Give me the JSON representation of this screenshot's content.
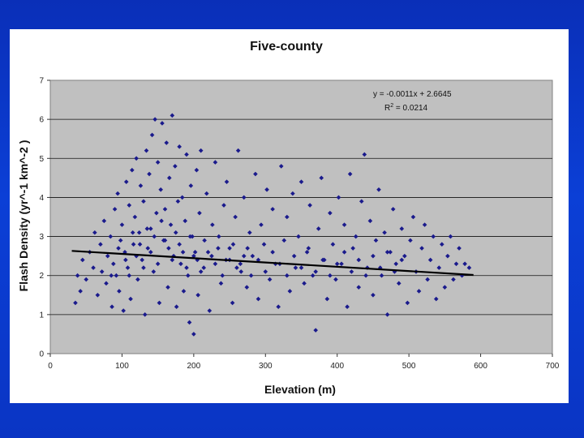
{
  "chart_data": {
    "type": "scatter",
    "title": "Five-county",
    "xlabel": "Elevation (m)",
    "ylabel": "Flash Density (yr^-1 km^-2 )",
    "xlim": [
      0,
      700
    ],
    "ylim": [
      0,
      7
    ],
    "x_ticks": [
      "0",
      "100",
      "200",
      "300",
      "400",
      "500",
      "600",
      "700"
    ],
    "y_ticks": [
      "0",
      "1",
      "2",
      "3",
      "4",
      "5",
      "6",
      "7"
    ],
    "grid": "horizontal",
    "legend": "none",
    "trendline": {
      "equation": "y = -0.0011x + 2.6645",
      "r2_prefix": "R",
      "r2_sup": "2",
      "r2_value": " = 0.0214",
      "slope": -0.0011,
      "intercept": 2.6645,
      "x_range": [
        30,
        590
      ]
    },
    "series": [
      {
        "marker": "diamond",
        "color": "#1a1a8c",
        "points": [
          [
            35,
            1.3
          ],
          [
            38,
            2.0
          ],
          [
            42,
            1.6
          ],
          [
            45,
            2.4
          ],
          [
            50,
            1.9
          ],
          [
            55,
            2.6
          ],
          [
            60,
            2.2
          ],
          [
            62,
            3.1
          ],
          [
            66,
            1.5
          ],
          [
            70,
            2.8
          ],
          [
            72,
            2.1
          ],
          [
            75,
            3.4
          ],
          [
            78,
            1.8
          ],
          [
            80,
            2.5
          ],
          [
            84,
            3.0
          ],
          [
            86,
            1.2
          ],
          [
            88,
            2.3
          ],
          [
            90,
            3.7
          ],
          [
            92,
            2.0
          ],
          [
            94,
            4.1
          ],
          [
            96,
            1.6
          ],
          [
            98,
            2.9
          ],
          [
            100,
            3.3
          ],
          [
            102,
            1.1
          ],
          [
            104,
            2.6
          ],
          [
            106,
            4.4
          ],
          [
            108,
            2.2
          ],
          [
            110,
            3.8
          ],
          [
            112,
            1.4
          ],
          [
            114,
            4.7
          ],
          [
            116,
            2.8
          ],
          [
            118,
            3.5
          ],
          [
            120,
            5.0
          ],
          [
            122,
            1.9
          ],
          [
            124,
            3.1
          ],
          [
            126,
            4.3
          ],
          [
            128,
            2.4
          ],
          [
            130,
            3.9
          ],
          [
            132,
            1.0
          ],
          [
            134,
            5.2
          ],
          [
            136,
            2.7
          ],
          [
            138,
            4.6
          ],
          [
            140,
            3.2
          ],
          [
            142,
            5.6
          ],
          [
            144,
            2.1
          ],
          [
            146,
            6.0
          ],
          [
            148,
            3.6
          ],
          [
            150,
            4.9
          ],
          [
            152,
            1.3
          ],
          [
            154,
            4.2
          ],
          [
            156,
            5.9
          ],
          [
            158,
            2.9
          ],
          [
            160,
            3.7
          ],
          [
            162,
            5.4
          ],
          [
            164,
            1.7
          ],
          [
            166,
            4.5
          ],
          [
            168,
            3.3
          ],
          [
            170,
            6.1
          ],
          [
            172,
            2.5
          ],
          [
            174,
            4.8
          ],
          [
            176,
            1.2
          ],
          [
            178,
            3.9
          ],
          [
            180,
            5.3
          ],
          [
            182,
            2.3
          ],
          [
            184,
            4.0
          ],
          [
            186,
            1.6
          ],
          [
            188,
            3.4
          ],
          [
            190,
            5.1
          ],
          [
            192,
            2.0
          ],
          [
            194,
            0.8
          ],
          [
            196,
            4.3
          ],
          [
            198,
            3.0
          ],
          [
            200,
            0.5
          ],
          [
            202,
            2.6
          ],
          [
            204,
            4.7
          ],
          [
            206,
            1.5
          ],
          [
            208,
            3.6
          ],
          [
            210,
            5.2
          ],
          [
            214,
            2.2
          ],
          [
            218,
            4.1
          ],
          [
            222,
            1.1
          ],
          [
            226,
            3.3
          ],
          [
            230,
            4.9
          ],
          [
            234,
            2.7
          ],
          [
            238,
            1.8
          ],
          [
            242,
            3.8
          ],
          [
            246,
            4.4
          ],
          [
            250,
            2.4
          ],
          [
            254,
            1.3
          ],
          [
            258,
            3.5
          ],
          [
            262,
            5.2
          ],
          [
            266,
            2.1
          ],
          [
            270,
            4.0
          ],
          [
            274,
            1.7
          ],
          [
            278,
            3.1
          ],
          [
            282,
            2.5
          ],
          [
            286,
            4.6
          ],
          [
            290,
            1.4
          ],
          [
            294,
            3.3
          ],
          [
            298,
            2.8
          ],
          [
            302,
            4.2
          ],
          [
            306,
            1.9
          ],
          [
            310,
            3.7
          ],
          [
            314,
            2.3
          ],
          [
            318,
            1.2
          ],
          [
            322,
            4.8
          ],
          [
            326,
            2.9
          ],
          [
            330,
            3.5
          ],
          [
            334,
            1.6
          ],
          [
            338,
            4.1
          ],
          [
            342,
            2.2
          ],
          [
            346,
            3.0
          ],
          [
            350,
            4.4
          ],
          [
            354,
            1.8
          ],
          [
            358,
            2.6
          ],
          [
            362,
            3.8
          ],
          [
            366,
            2.0
          ],
          [
            370,
            0.6
          ],
          [
            374,
            3.2
          ],
          [
            378,
            4.5
          ],
          [
            382,
            2.4
          ],
          [
            386,
            1.4
          ],
          [
            390,
            3.6
          ],
          [
            394,
            2.8
          ],
          [
            398,
            1.9
          ],
          [
            402,
            4.0
          ],
          [
            406,
            2.3
          ],
          [
            410,
            3.3
          ],
          [
            414,
            1.2
          ],
          [
            418,
            4.6
          ],
          [
            422,
            2.7
          ],
          [
            426,
            3.0
          ],
          [
            430,
            1.7
          ],
          [
            434,
            3.9
          ],
          [
            438,
            5.1
          ],
          [
            442,
            2.2
          ],
          [
            446,
            3.4
          ],
          [
            450,
            1.5
          ],
          [
            454,
            2.9
          ],
          [
            458,
            4.2
          ],
          [
            462,
            2.0
          ],
          [
            466,
            3.1
          ],
          [
            470,
            1.0
          ],
          [
            474,
            2.6
          ],
          [
            478,
            3.7
          ],
          [
            482,
            2.3
          ],
          [
            486,
            1.8
          ],
          [
            490,
            3.2
          ],
          [
            494,
            2.5
          ],
          [
            498,
            1.3
          ],
          [
            502,
            2.9
          ],
          [
            506,
            3.5
          ],
          [
            510,
            2.1
          ],
          [
            514,
            1.6
          ],
          [
            518,
            2.7
          ],
          [
            522,
            3.3
          ],
          [
            526,
            1.9
          ],
          [
            530,
            2.4
          ],
          [
            534,
            3.0
          ],
          [
            538,
            1.4
          ],
          [
            542,
            2.2
          ],
          [
            546,
            2.8
          ],
          [
            550,
            1.7
          ],
          [
            554,
            2.5
          ],
          [
            558,
            3.0
          ],
          [
            562,
            1.9
          ],
          [
            566,
            2.3
          ],
          [
            570,
            2.7
          ],
          [
            574,
            2.0
          ],
          [
            578,
            2.3
          ],
          [
            584,
            2.2
          ],
          [
            160,
            2.9
          ],
          [
            150,
            2.3
          ],
          [
            140,
            2.6
          ],
          [
            130,
            2.2
          ],
          [
            120,
            2.5
          ],
          [
            110,
            2.0
          ],
          [
            170,
            2.4
          ],
          [
            180,
            2.8
          ],
          [
            190,
            2.2
          ],
          [
            200,
            2.5
          ],
          [
            210,
            2.1
          ],
          [
            220,
            2.6
          ],
          [
            230,
            2.3
          ],
          [
            240,
            2.0
          ],
          [
            250,
            2.7
          ],
          [
            260,
            2.2
          ],
          [
            270,
            2.5
          ],
          [
            280,
            2.0
          ],
          [
            290,
            2.4
          ],
          [
            300,
            2.1
          ],
          [
            310,
            2.6
          ],
          [
            320,
            2.3
          ],
          [
            330,
            2.0
          ],
          [
            340,
            2.5
          ],
          [
            350,
            2.2
          ],
          [
            360,
            2.7
          ],
          [
            370,
            2.1
          ],
          [
            380,
            2.4
          ],
          [
            390,
            2.0
          ],
          [
            400,
            2.3
          ],
          [
            410,
            2.6
          ],
          [
            420,
            2.1
          ],
          [
            430,
            2.4
          ],
          [
            440,
            2.0
          ],
          [
            450,
            2.5
          ],
          [
            460,
            2.2
          ],
          [
            470,
            2.6
          ],
          [
            480,
            2.1
          ],
          [
            490,
            2.4
          ],
          [
            145,
            3.0
          ],
          [
            155,
            3.4
          ],
          [
            165,
            2.7
          ],
          [
            135,
            3.2
          ],
          [
            125,
            2.8
          ],
          [
            115,
            3.1
          ],
          [
            105,
            2.4
          ],
          [
            95,
            2.7
          ],
          [
            85,
            2.0
          ],
          [
            175,
            3.1
          ],
          [
            185,
            2.6
          ],
          [
            195,
            3.0
          ],
          [
            205,
            2.4
          ],
          [
            215,
            2.9
          ],
          [
            225,
            2.5
          ],
          [
            235,
            3.0
          ],
          [
            245,
            2.4
          ],
          [
            255,
            2.8
          ],
          [
            265,
            2.3
          ],
          [
            275,
            2.7
          ]
        ]
      }
    ]
  }
}
